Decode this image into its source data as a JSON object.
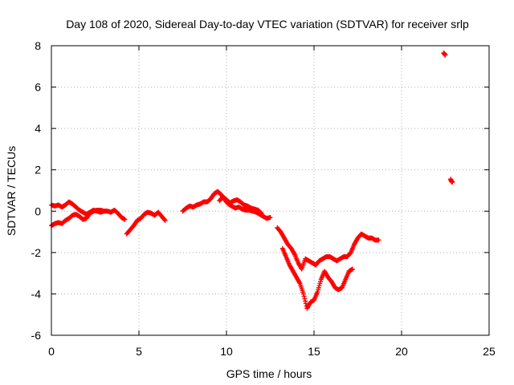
{
  "chart_data": {
    "type": "scatter",
    "title": "Day 108 of 2020, Sidereal Day-to-day VTEC variation (SDTVAR) for receiver srlp",
    "xlabel": "GPS time / hours",
    "ylabel": "SDTVAR / TECUs",
    "xlim": [
      0,
      25
    ],
    "ylim": [
      -6,
      8
    ],
    "x_ticks": [
      "0",
      "5",
      "10",
      "15",
      "20",
      "25"
    ],
    "y_ticks": [
      "-6",
      "-4",
      "-2",
      "0",
      "2",
      "4",
      "6",
      "8"
    ],
    "grid": true,
    "marker": "plus",
    "color": "#ff0000",
    "series": [
      {
        "x": [
          0.0,
          0.2,
          0.4,
          0.6,
          0.8,
          1.0,
          1.2,
          1.4,
          1.6,
          1.8,
          2.0,
          2.2,
          2.4,
          2.6,
          2.8,
          3.0,
          3.2,
          3.4,
          3.6,
          3.8,
          4.0,
          4.2
        ],
        "y": [
          0.3,
          0.25,
          0.3,
          0.2,
          0.3,
          0.45,
          0.35,
          0.2,
          0.05,
          -0.05,
          -0.15,
          -0.05,
          0.05,
          0.0,
          -0.05,
          0.0,
          0.0,
          -0.05,
          0.05,
          -0.1,
          -0.3,
          -0.4
        ]
      },
      {
        "x": [
          0.0,
          0.2,
          0.4,
          0.6,
          0.8,
          1.0,
          1.2,
          1.4,
          1.6,
          1.8,
          2.0,
          2.2,
          2.4,
          2.6,
          2.8,
          3.0
        ],
        "y": [
          -0.7,
          -0.6,
          -0.55,
          -0.6,
          -0.45,
          -0.35,
          -0.2,
          -0.15,
          -0.25,
          -0.4,
          -0.35,
          -0.1,
          0.0,
          0.05,
          0.05,
          0.0
        ]
      },
      {
        "x": [
          4.3,
          4.5,
          4.7,
          4.9,
          5.1,
          5.3,
          5.5,
          5.7,
          5.9,
          6.1,
          6.3,
          6.5
        ],
        "y": [
          -1.1,
          -0.9,
          -0.7,
          -0.45,
          -0.35,
          -0.15,
          -0.05,
          -0.1,
          -0.2,
          -0.05,
          -0.25,
          -0.45
        ]
      },
      {
        "x": [
          7.5,
          7.7,
          7.9,
          8.1,
          8.3,
          8.5,
          8.7,
          8.9,
          9.1,
          9.3,
          9.5,
          9.7,
          9.9,
          10.1,
          10.3,
          10.5,
          10.7,
          10.9,
          11.1,
          11.3,
          11.5,
          11.7,
          11.9,
          12.1,
          12.3,
          12.5
        ],
        "y": [
          0.0,
          0.15,
          0.25,
          0.2,
          0.3,
          0.35,
          0.45,
          0.45,
          0.6,
          0.85,
          0.95,
          0.8,
          0.55,
          0.35,
          0.25,
          0.15,
          0.2,
          0.1,
          0.05,
          0.05,
          0.0,
          -0.05,
          -0.15,
          -0.25,
          -0.35,
          -0.3
        ]
      },
      {
        "x": [
          9.6,
          9.8,
          10.0,
          10.2,
          10.4,
          10.6,
          10.8,
          11.0,
          11.2,
          11.4,
          11.6,
          11.8,
          12.0
        ],
        "y": [
          0.5,
          0.7,
          0.55,
          0.4,
          0.5,
          0.55,
          0.45,
          0.3,
          0.25,
          0.15,
          0.1,
          0.05,
          -0.1
        ]
      },
      {
        "x": [
          12.9,
          13.1,
          13.3,
          13.5,
          13.7,
          13.9,
          14.1,
          14.3,
          14.5,
          14.7,
          14.9,
          15.1,
          15.3,
          15.5,
          15.7,
          15.9,
          16.1,
          16.3,
          16.5,
          16.7,
          16.9,
          17.1,
          17.3,
          17.5,
          17.7,
          17.9,
          18.1,
          18.3,
          18.5,
          18.7
        ],
        "y": [
          -0.8,
          -1.0,
          -1.3,
          -1.6,
          -1.8,
          -2.1,
          -2.5,
          -2.8,
          -2.3,
          -2.4,
          -2.5,
          -2.6,
          -2.4,
          -2.3,
          -2.2,
          -2.2,
          -2.3,
          -2.4,
          -2.3,
          -2.2,
          -2.2,
          -2.0,
          -1.6,
          -1.3,
          -1.1,
          -1.2,
          -1.3,
          -1.3,
          -1.4,
          -1.4
        ]
      },
      {
        "x": [
          13.2,
          13.4,
          13.6,
          13.8,
          14.0,
          14.2,
          14.4,
          14.6,
          14.8,
          15.0,
          15.2,
          15.4,
          15.6,
          15.8,
          16.0,
          16.2,
          16.4,
          16.6,
          16.8,
          17.0,
          17.2
        ],
        "y": [
          -1.8,
          -2.2,
          -2.6,
          -2.9,
          -3.2,
          -3.5,
          -4.0,
          -4.7,
          -4.4,
          -4.3,
          -3.9,
          -3.3,
          -2.9,
          -3.2,
          -3.4,
          -3.7,
          -3.8,
          -3.7,
          -3.3,
          -2.9,
          -2.8
        ]
      },
      {
        "x": [
          22.4,
          22.45,
          22.5,
          22.8,
          22.85,
          22.9
        ],
        "y": [
          7.65,
          7.6,
          7.55,
          1.55,
          1.45,
          1.4
        ]
      }
    ]
  }
}
